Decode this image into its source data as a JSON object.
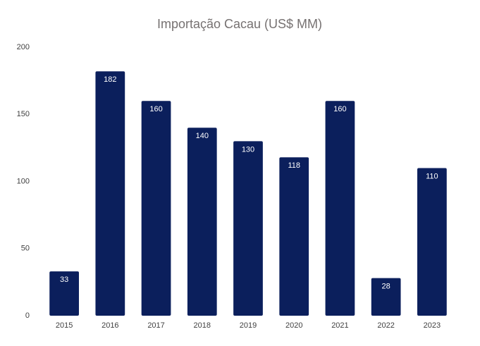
{
  "chart_data": {
    "type": "bar",
    "title": "Importação Cacau (US$ MM)",
    "categories": [
      "2015",
      "2016",
      "2017",
      "2018",
      "2019",
      "2020",
      "2021",
      "2022",
      "2023"
    ],
    "values": [
      33,
      182,
      160,
      140,
      130,
      118,
      160,
      28,
      110
    ],
    "color": "#0b1f5c",
    "ylim": [
      0,
      200
    ],
    "yticks": [
      0,
      50,
      100,
      150,
      200
    ],
    "grid": false,
    "data_labels": true
  }
}
